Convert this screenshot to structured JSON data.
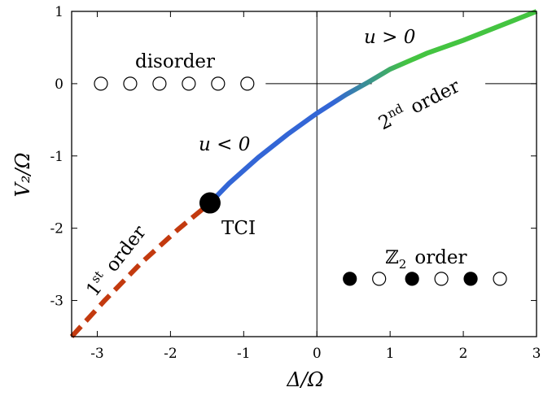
{
  "chart_data": {
    "type": "line",
    "xlabel": "Δ/Ω",
    "ylabel": "V₂/Ω",
    "xlim": [
      -3.35,
      3.0
    ],
    "ylim": [
      -3.5,
      1.0
    ],
    "xticks": [
      -3,
      -2,
      -1,
      0,
      1,
      2,
      3
    ],
    "xtick_labels": [
      "-3",
      "-2",
      "-1",
      "0",
      "1",
      "2",
      "3"
    ],
    "yticks": [
      -3,
      -2,
      -1,
      0,
      1
    ],
    "ytick_labels": [
      "-3",
      "-2",
      "-1",
      "0",
      "1"
    ],
    "grid": false,
    "reference_lines": [
      {
        "orientation": "vertical",
        "value": 0
      },
      {
        "orientation": "horizontal",
        "value": 0,
        "segments": [
          [
            -0.7,
            0.75
          ],
          [
            2.3,
            3.0
          ]
        ]
      }
    ],
    "series": [
      {
        "name": "1st order",
        "style": "dashed",
        "color": "#c33a0f",
        "x": [
          -3.35,
          -2.9,
          -2.4,
          -1.9,
          -1.46
        ],
        "y": [
          -3.5,
          -3.0,
          -2.48,
          -2.02,
          -1.65
        ]
      },
      {
        "name": "2nd order",
        "style": "solid",
        "color_gradient": [
          "#3366d6",
          "#44c441"
        ],
        "gradient_note": "u < 0 (blue) to u > 0 (green)",
        "x": [
          -1.46,
          -1.2,
          -0.8,
          -0.4,
          0.0,
          0.4,
          0.7,
          1.0,
          1.5,
          2.0,
          2.5,
          3.0
        ],
        "y": [
          -1.65,
          -1.38,
          -1.02,
          -0.7,
          -0.41,
          -0.15,
          0.02,
          0.2,
          0.42,
          0.6,
          0.8,
          1.0
        ]
      }
    ],
    "markers": [
      {
        "label": "TCI",
        "x": -1.46,
        "y": -1.65,
        "fill": "#000000"
      }
    ],
    "annotations": {
      "disorder": "disorder",
      "z2": "ℤ",
      "z2_sub": "2",
      "order_word": "order",
      "tci": "TCI",
      "u_lt": "u < 0",
      "u_gt": "u > 0",
      "second_num": "2",
      "second_sup": "nd",
      "first_num": "1",
      "first_sup": "st"
    },
    "disorder_circles": {
      "y": 0,
      "x": [
        -2.95,
        -2.55,
        -2.15,
        -1.75,
        -1.35,
        -0.95
      ],
      "filled": [
        false,
        false,
        false,
        false,
        false,
        false
      ]
    },
    "z2_circles": {
      "y": -2.7,
      "x": [
        0.45,
        0.85,
        1.3,
        1.7,
        2.1,
        2.5
      ],
      "filled": [
        true,
        false,
        true,
        false,
        true,
        false
      ]
    },
    "colors": {
      "first_order": "#c33a0f",
      "u_negative": "#3366d6",
      "u_positive": "#44c441",
      "axes": "#000000"
    }
  }
}
